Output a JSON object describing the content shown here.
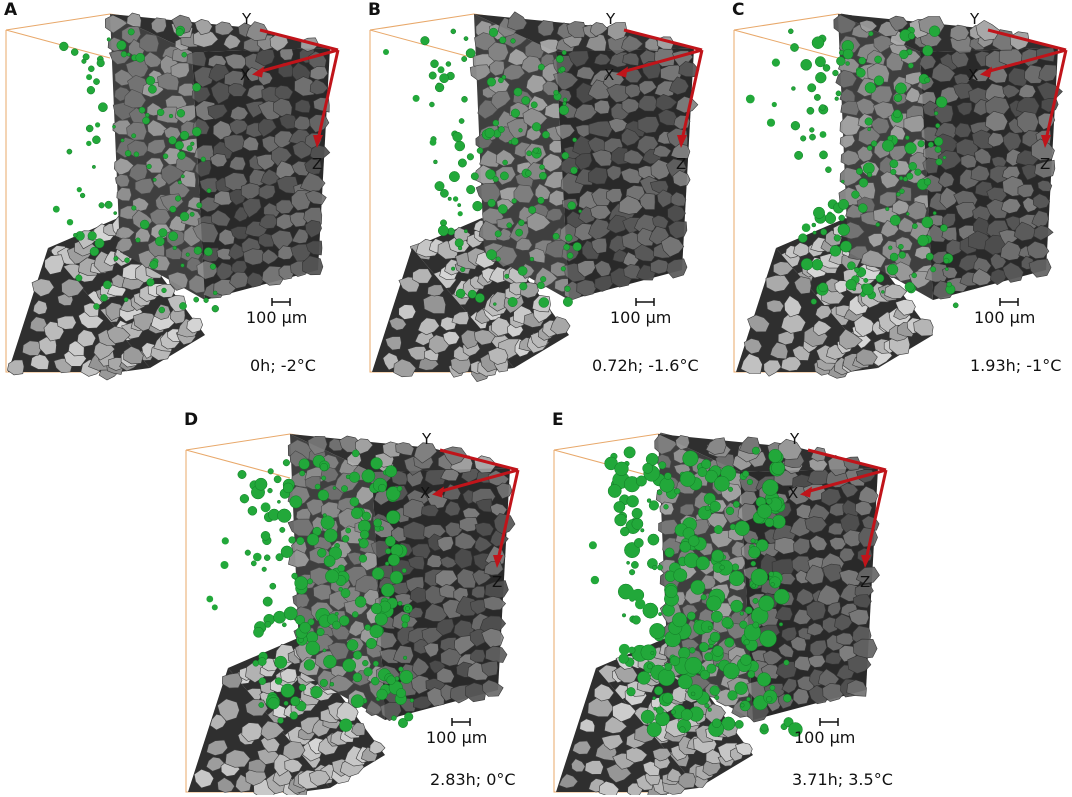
{
  "figure": {
    "axis_labels": {
      "x": "X",
      "y": "Y",
      "z": "Z"
    },
    "scale_bar": "100 μm",
    "colors": {
      "ice_phase": "#22a83a",
      "axis_arrow": "#c0141a",
      "bounding_box": "#e8a86a",
      "grain": "#8c8c8c",
      "pore": "#2f2f2f"
    },
    "panels": [
      {
        "label": "A",
        "caption": "0h; -2°C",
        "ice_amount": 0.25
      },
      {
        "label": "B",
        "caption": "0.72h; -1.6°C",
        "ice_amount": 0.35
      },
      {
        "label": "C",
        "caption": "1.93h; -1°C",
        "ice_amount": 0.5
      },
      {
        "label": "D",
        "caption": "2.83h; 0°C",
        "ice_amount": 0.7
      },
      {
        "label": "E",
        "caption": "3.71h; 3.5°C",
        "ice_amount": 1.0
      }
    ]
  }
}
